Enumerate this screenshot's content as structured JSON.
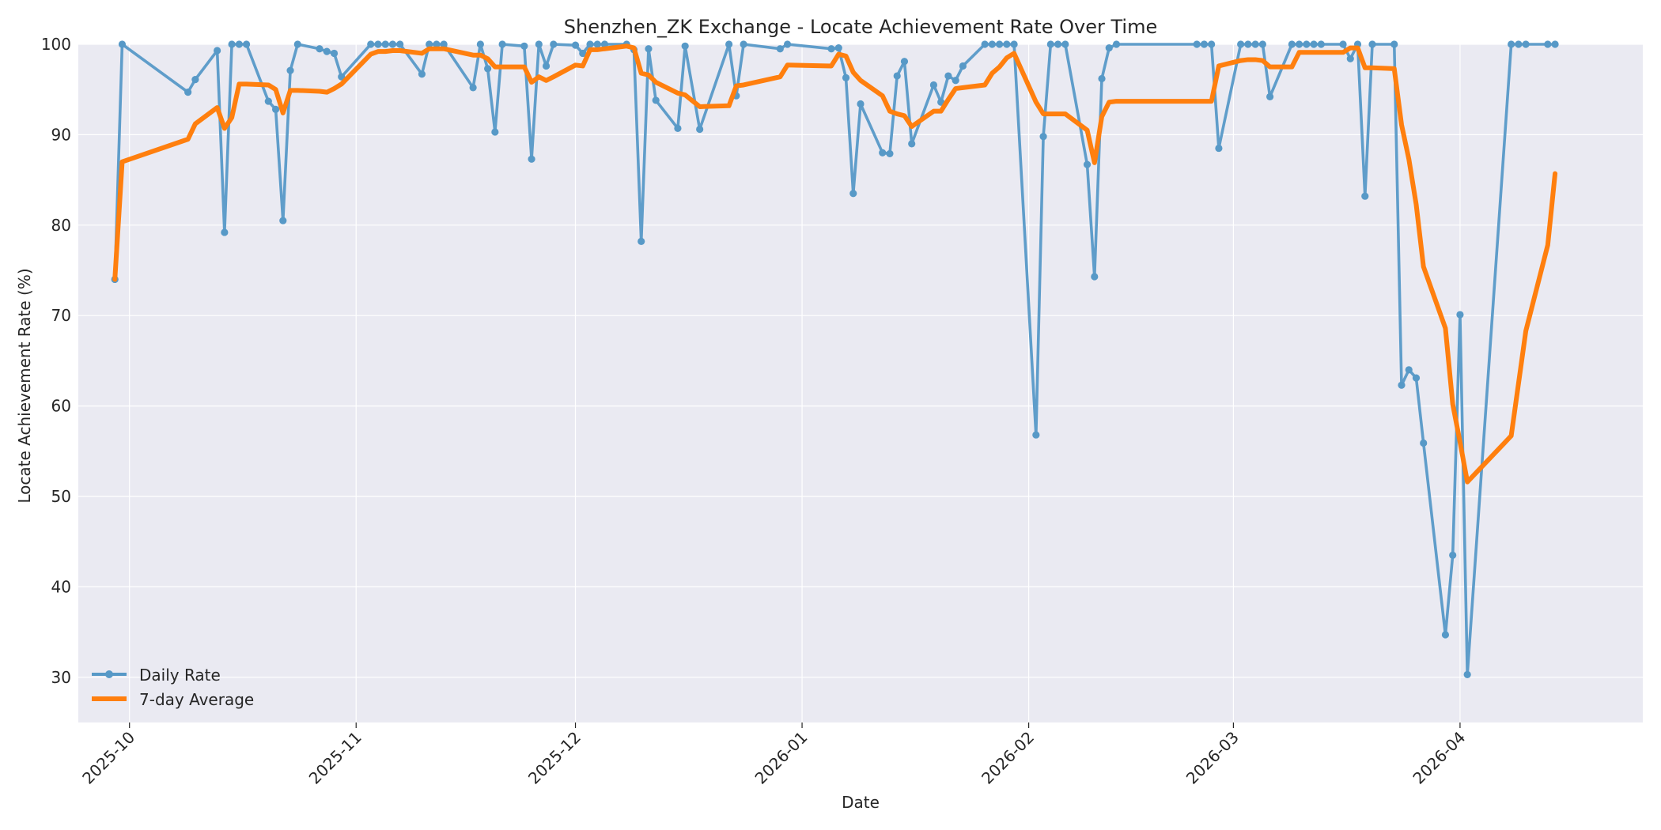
{
  "chart_data": {
    "type": "line",
    "title": "Shenzhen_ZK Exchange - Locate Achievement Rate Over Time",
    "xlabel": "Date",
    "ylabel": "Locate Achievement Rate (%)",
    "xlim": [
      "2025-09-24",
      "2026-04-26"
    ],
    "ylim": [
      25,
      100
    ],
    "yticks": [
      30,
      40,
      50,
      60,
      70,
      80,
      90,
      100
    ],
    "xticks": [
      {
        "date": "2025-10-01",
        "label": "2025-10"
      },
      {
        "date": "2025-11-01",
        "label": "2025-11"
      },
      {
        "date": "2025-12-01",
        "label": "2025-12"
      },
      {
        "date": "2026-01-01",
        "label": "2026-01"
      },
      {
        "date": "2026-02-01",
        "label": "2026-02"
      },
      {
        "date": "2026-03-01",
        "label": "2026-03"
      },
      {
        "date": "2026-04-01",
        "label": "2026-04"
      }
    ],
    "grid": true,
    "legend_position": "lower-left",
    "background_color": "#eaeaf2",
    "series": [
      {
        "name": "Daily Rate",
        "color": "#5799c7",
        "marker": "circle",
        "points": [
          [
            "2025-09-29",
            74.0
          ],
          [
            "2025-09-30",
            100.0
          ],
          [
            "2025-10-09",
            94.7
          ],
          [
            "2025-10-10",
            96.1
          ],
          [
            "2025-10-13",
            99.3
          ],
          [
            "2025-10-14",
            79.2
          ],
          [
            "2025-10-15",
            100.0
          ],
          [
            "2025-10-16",
            100.0
          ],
          [
            "2025-10-17",
            100.0
          ],
          [
            "2025-10-20",
            93.7
          ],
          [
            "2025-10-21",
            92.8
          ],
          [
            "2025-10-22",
            80.5
          ],
          [
            "2025-10-23",
            97.1
          ],
          [
            "2025-10-24",
            100.0
          ],
          [
            "2025-10-27",
            99.5
          ],
          [
            "2025-10-28",
            99.2
          ],
          [
            "2025-10-29",
            99.0
          ],
          [
            "2025-10-30",
            96.4
          ],
          [
            "2025-11-03",
            100.0
          ],
          [
            "2025-11-04",
            100.0
          ],
          [
            "2025-11-05",
            100.0
          ],
          [
            "2025-11-06",
            100.0
          ],
          [
            "2025-11-07",
            100.0
          ],
          [
            "2025-11-10",
            96.7
          ],
          [
            "2025-11-11",
            100.0
          ],
          [
            "2025-11-12",
            100.0
          ],
          [
            "2025-11-13",
            100.0
          ],
          [
            "2025-11-17",
            95.2
          ],
          [
            "2025-11-18",
            100.0
          ],
          [
            "2025-11-19",
            97.3
          ],
          [
            "2025-11-20",
            90.3
          ],
          [
            "2025-11-21",
            100.0
          ],
          [
            "2025-11-24",
            99.8
          ],
          [
            "2025-11-25",
            87.3
          ],
          [
            "2025-11-26",
            100.0
          ],
          [
            "2025-11-27",
            97.6
          ],
          [
            "2025-11-28",
            100.0
          ],
          [
            "2025-12-01",
            99.9
          ],
          [
            "2025-12-02",
            99.0
          ],
          [
            "2025-12-03",
            100.0
          ],
          [
            "2025-12-04",
            100.0
          ],
          [
            "2025-12-05",
            100.0
          ],
          [
            "2025-12-08",
            100.0
          ],
          [
            "2025-12-09",
            99.4
          ],
          [
            "2025-12-10",
            78.2
          ],
          [
            "2025-12-11",
            99.5
          ],
          [
            "2025-12-12",
            93.8
          ],
          [
            "2025-12-15",
            90.7
          ],
          [
            "2025-12-16",
            99.8
          ],
          [
            "2025-12-18",
            90.6
          ],
          [
            "2025-12-22",
            100.0
          ],
          [
            "2025-12-23",
            94.3
          ],
          [
            "2025-12-24",
            100.0
          ],
          [
            "2025-12-29",
            99.5
          ],
          [
            "2025-12-30",
            100.0
          ],
          [
            "2026-01-05",
            99.5
          ],
          [
            "2026-01-06",
            99.6
          ],
          [
            "2026-01-07",
            96.3
          ],
          [
            "2026-01-08",
            83.5
          ],
          [
            "2026-01-09",
            93.4
          ],
          [
            "2026-01-12",
            88.0
          ],
          [
            "2026-01-13",
            87.9
          ],
          [
            "2026-01-14",
            96.5
          ],
          [
            "2026-01-15",
            98.1
          ],
          [
            "2026-01-16",
            89.0
          ],
          [
            "2026-01-19",
            95.5
          ],
          [
            "2026-01-20",
            93.6
          ],
          [
            "2026-01-21",
            96.5
          ],
          [
            "2026-01-22",
            96.0
          ],
          [
            "2026-01-23",
            97.6
          ],
          [
            "2026-01-26",
            100.0
          ],
          [
            "2026-01-27",
            100.0
          ],
          [
            "2026-01-28",
            100.0
          ],
          [
            "2026-01-29",
            100.0
          ],
          [
            "2026-01-30",
            100.0
          ],
          [
            "2026-02-02",
            56.8
          ],
          [
            "2026-02-03",
            89.8
          ],
          [
            "2026-02-04",
            100.0
          ],
          [
            "2026-02-05",
            100.0
          ],
          [
            "2026-02-06",
            100.0
          ],
          [
            "2026-02-09",
            86.7
          ],
          [
            "2026-02-10",
            74.3
          ],
          [
            "2026-02-11",
            96.2
          ],
          [
            "2026-02-12",
            99.6
          ],
          [
            "2026-02-13",
            100.0
          ],
          [
            "2026-02-24",
            100.0
          ],
          [
            "2026-02-25",
            100.0
          ],
          [
            "2026-02-26",
            100.0
          ],
          [
            "2026-02-27",
            88.5
          ],
          [
            "2026-03-02",
            100.0
          ],
          [
            "2026-03-03",
            100.0
          ],
          [
            "2026-03-04",
            100.0
          ],
          [
            "2026-03-05",
            100.0
          ],
          [
            "2026-03-06",
            94.2
          ],
          [
            "2026-03-09",
            100.0
          ],
          [
            "2026-03-10",
            100.0
          ],
          [
            "2026-03-11",
            100.0
          ],
          [
            "2026-03-12",
            100.0
          ],
          [
            "2026-03-13",
            100.0
          ],
          [
            "2026-03-16",
            100.0
          ],
          [
            "2026-03-17",
            98.4
          ],
          [
            "2026-03-18",
            100.0
          ],
          [
            "2026-03-19",
            83.2
          ],
          [
            "2026-03-20",
            100.0
          ],
          [
            "2026-03-23",
            100.0
          ],
          [
            "2026-03-24",
            62.3
          ],
          [
            "2026-03-25",
            64.0
          ],
          [
            "2026-03-26",
            63.1
          ],
          [
            "2026-03-27",
            55.9
          ],
          [
            "2026-03-30",
            34.7
          ],
          [
            "2026-03-31",
            43.5
          ],
          [
            "2026-04-01",
            70.1
          ],
          [
            "2026-04-02",
            30.3
          ],
          [
            "2026-04-08",
            100.0
          ],
          [
            "2026-04-09",
            100.0
          ],
          [
            "2026-04-10",
            100.0
          ],
          [
            "2026-04-13",
            100.0
          ],
          [
            "2026-04-14",
            100.0
          ]
        ]
      },
      {
        "name": "7-day Average",
        "color": "#ff7f0e",
        "marker": "none",
        "points": [
          [
            "2025-09-29",
            74.0
          ],
          [
            "2025-09-30",
            87.0
          ],
          [
            "2025-10-09",
            89.5
          ],
          [
            "2025-10-10",
            91.2
          ],
          [
            "2025-10-13",
            93.0
          ],
          [
            "2025-10-14",
            90.7
          ],
          [
            "2025-10-15",
            91.9
          ],
          [
            "2025-10-16",
            95.6
          ],
          [
            "2025-10-17",
            95.6
          ],
          [
            "2025-10-20",
            95.5
          ],
          [
            "2025-10-21",
            95.0
          ],
          [
            "2025-10-22",
            92.4
          ],
          [
            "2025-10-23",
            94.9
          ],
          [
            "2025-10-24",
            94.9
          ],
          [
            "2025-10-27",
            94.8
          ],
          [
            "2025-10-28",
            94.7
          ],
          [
            "2025-10-29",
            95.1
          ],
          [
            "2025-10-30",
            95.6
          ],
          [
            "2025-11-03",
            98.9
          ],
          [
            "2025-11-04",
            99.2
          ],
          [
            "2025-11-05",
            99.2
          ],
          [
            "2025-11-06",
            99.3
          ],
          [
            "2025-11-07",
            99.3
          ],
          [
            "2025-11-10",
            99.0
          ],
          [
            "2025-11-11",
            99.5
          ],
          [
            "2025-11-12",
            99.5
          ],
          [
            "2025-11-13",
            99.5
          ],
          [
            "2025-11-17",
            98.8
          ],
          [
            "2025-11-18",
            98.8
          ],
          [
            "2025-11-19",
            98.4
          ],
          [
            "2025-11-20",
            97.5
          ],
          [
            "2025-11-21",
            97.5
          ],
          [
            "2025-11-24",
            97.5
          ],
          [
            "2025-11-25",
            95.8
          ],
          [
            "2025-11-26",
            96.4
          ],
          [
            "2025-11-27",
            96.0
          ],
          [
            "2025-11-28",
            96.4
          ],
          [
            "2025-12-01",
            97.7
          ],
          [
            "2025-12-02",
            97.6
          ],
          [
            "2025-12-03",
            99.4
          ],
          [
            "2025-12-04",
            99.4
          ],
          [
            "2025-12-05",
            99.5
          ],
          [
            "2025-12-08",
            99.8
          ],
          [
            "2025-12-09",
            99.6
          ],
          [
            "2025-12-10",
            96.8
          ],
          [
            "2025-12-11",
            96.6
          ],
          [
            "2025-12-12",
            95.8
          ],
          [
            "2025-12-15",
            94.6
          ],
          [
            "2025-12-16",
            94.4
          ],
          [
            "2025-12-18",
            93.1
          ],
          [
            "2025-12-22",
            93.2
          ],
          [
            "2025-12-23",
            95.4
          ],
          [
            "2025-12-24",
            95.5
          ],
          [
            "2025-12-29",
            96.4
          ],
          [
            "2025-12-30",
            97.7
          ],
          [
            "2026-01-05",
            97.6
          ],
          [
            "2026-01-06",
            98.9
          ],
          [
            "2026-01-07",
            98.7
          ],
          [
            "2026-01-08",
            96.9
          ],
          [
            "2026-01-09",
            96.0
          ],
          [
            "2026-01-12",
            94.3
          ],
          [
            "2026-01-13",
            92.6
          ],
          [
            "2026-01-14",
            92.3
          ],
          [
            "2026-01-15",
            92.1
          ],
          [
            "2026-01-16",
            90.9
          ],
          [
            "2026-01-19",
            92.6
          ],
          [
            "2026-01-20",
            92.6
          ],
          [
            "2026-01-21",
            93.9
          ],
          [
            "2026-01-22",
            95.1
          ],
          [
            "2026-01-23",
            95.2
          ],
          [
            "2026-01-26",
            95.5
          ],
          [
            "2026-01-27",
            96.8
          ],
          [
            "2026-01-28",
            97.5
          ],
          [
            "2026-01-29",
            98.5
          ],
          [
            "2026-01-30",
            99.0
          ],
          [
            "2026-02-02",
            93.6
          ],
          [
            "2026-02-03",
            92.3
          ],
          [
            "2026-02-04",
            92.3
          ],
          [
            "2026-02-05",
            92.3
          ],
          [
            "2026-02-06",
            92.3
          ],
          [
            "2026-02-09",
            90.5
          ],
          [
            "2026-02-10",
            86.9
          ],
          [
            "2026-02-11",
            92.0
          ],
          [
            "2026-02-12",
            93.6
          ],
          [
            "2026-02-13",
            93.7
          ],
          [
            "2026-02-24",
            93.7
          ],
          [
            "2026-02-25",
            93.7
          ],
          [
            "2026-02-26",
            93.7
          ],
          [
            "2026-02-27",
            97.6
          ],
          [
            "2026-03-02",
            98.2
          ],
          [
            "2026-03-03",
            98.3
          ],
          [
            "2026-03-04",
            98.3
          ],
          [
            "2026-03-05",
            98.2
          ],
          [
            "2026-03-06",
            97.5
          ],
          [
            "2026-03-09",
            97.5
          ],
          [
            "2026-03-10",
            99.1
          ],
          [
            "2026-03-11",
            99.1
          ],
          [
            "2026-03-12",
            99.1
          ],
          [
            "2026-03-13",
            99.1
          ],
          [
            "2026-03-16",
            99.1
          ],
          [
            "2026-03-17",
            99.6
          ],
          [
            "2026-03-18",
            99.6
          ],
          [
            "2026-03-19",
            97.4
          ],
          [
            "2026-03-20",
            97.4
          ],
          [
            "2026-03-23",
            97.3
          ],
          [
            "2026-03-24",
            91.1
          ],
          [
            "2026-03-25",
            87.3
          ],
          [
            "2026-03-26",
            82.3
          ],
          [
            "2026-03-27",
            75.4
          ],
          [
            "2026-03-30",
            68.6
          ],
          [
            "2026-03-31",
            60.2
          ],
          [
            "2026-04-01",
            56.0
          ],
          [
            "2026-04-02",
            51.6
          ],
          [
            "2026-04-08",
            56.7
          ],
          [
            "2026-04-10",
            68.3
          ],
          [
            "2026-04-13",
            77.8
          ],
          [
            "2026-04-14",
            85.7
          ]
        ]
      }
    ]
  }
}
